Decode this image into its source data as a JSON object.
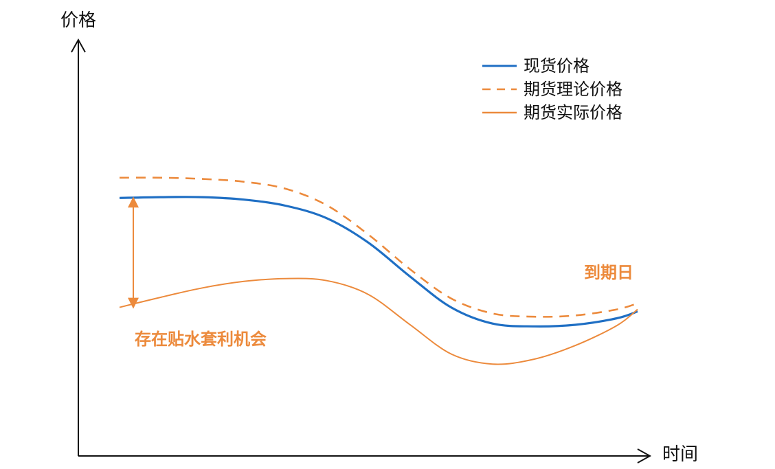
{
  "chart_data": {
    "type": "line",
    "ylabel": "价格",
    "xlabel": "时间",
    "x": [
      0,
      0.08,
      0.16,
      0.24,
      0.32,
      0.4,
      0.48,
      0.56,
      0.64,
      0.72,
      0.8,
      0.88,
      0.96,
      1.0
    ],
    "xlim": [
      0,
      1
    ],
    "ylim": [
      0,
      1
    ],
    "grid": false,
    "legend_position": "top-right",
    "series": [
      {
        "name": "现货价格",
        "color": "#1f6fc4",
        "style": "solid",
        "values": [
          0.63,
          0.632,
          0.632,
          0.626,
          0.611,
          0.58,
          0.52,
          0.437,
          0.36,
          0.32,
          0.313,
          0.317,
          0.333,
          0.35
        ]
      },
      {
        "name": "期货理论价格",
        "color": "#ec8a3c",
        "style": "dashed",
        "values": [
          0.68,
          0.68,
          0.677,
          0.67,
          0.653,
          0.612,
          0.54,
          0.455,
          0.382,
          0.345,
          0.337,
          0.34,
          0.355,
          0.37
        ]
      },
      {
        "name": "期货实际价格",
        "color": "#ec8a3c",
        "style": "solid",
        "values": [
          0.36,
          0.385,
          0.408,
          0.424,
          0.431,
          0.426,
          0.392,
          0.318,
          0.245,
          0.22,
          0.232,
          0.266,
          0.315,
          0.355
        ]
      }
    ],
    "annotations": [
      {
        "text": "到期日",
        "color": "#ec8a3c"
      },
      {
        "text": "存在贴水套利机会",
        "color": "#ec8a3c"
      }
    ]
  }
}
